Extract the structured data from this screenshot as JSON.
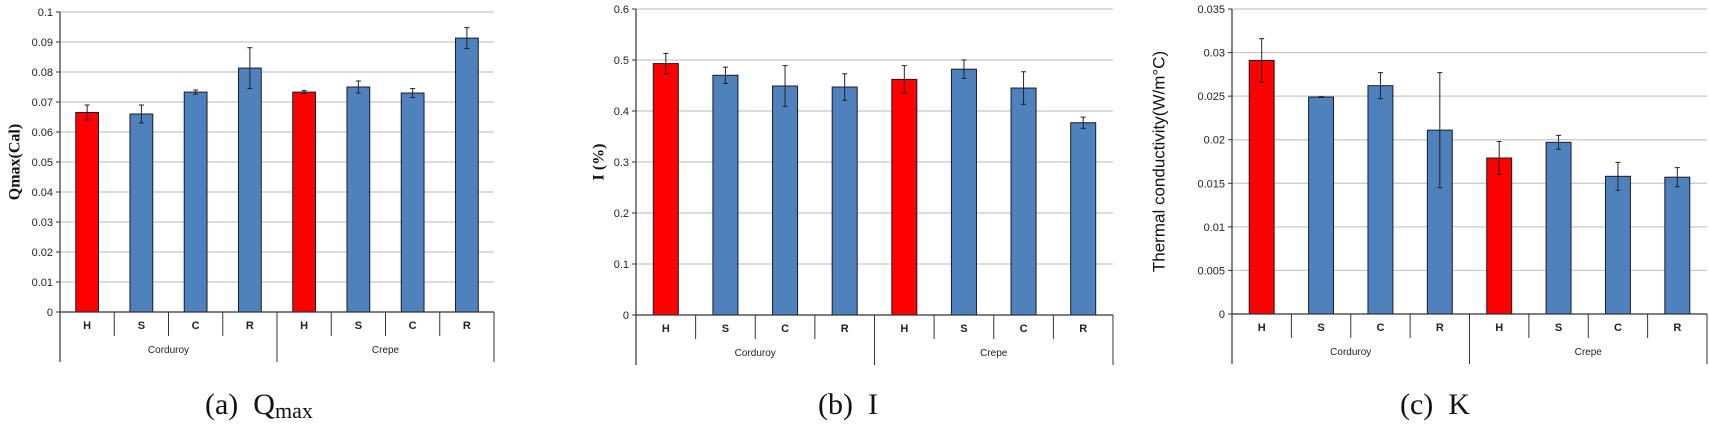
{
  "colors": {
    "highlight": "#ff0000",
    "bar": "#4f81bd",
    "grid": "#c8c8c8",
    "axis": "#333333"
  },
  "captions": [
    {
      "prefix": "(a)",
      "main": "Q",
      "sub": "max"
    },
    {
      "prefix": "(b)",
      "main": "I",
      "sub": ""
    },
    {
      "prefix": "(c)",
      "main": "K",
      "sub": ""
    }
  ],
  "chart_data": [
    {
      "type": "bar",
      "title": "(a) Qmax",
      "ylabel": "Qmax(Cal)",
      "xlabel": "",
      "ylim": [
        0,
        0.1
      ],
      "yticks": [
        0,
        0.01,
        0.02,
        0.03,
        0.04,
        0.05,
        0.06,
        0.07,
        0.08,
        0.09,
        0.1
      ],
      "ytick_labels": [
        "0",
        "0.01",
        "0.02",
        "0.03",
        "0.04",
        "0.05",
        "0.06",
        "0.07",
        "0.08",
        "0.09",
        "0.1"
      ],
      "groups": [
        "Corduroy",
        "Crepe"
      ],
      "categories": [
        "H",
        "S",
        "C",
        "R",
        "H",
        "S",
        "C",
        "R"
      ],
      "values": [
        0.0665,
        0.066,
        0.0733,
        0.0813,
        0.0733,
        0.075,
        0.073,
        0.0913
      ],
      "errors": [
        0.0025,
        0.003,
        0.0007,
        0.0068,
        0.0005,
        0.002,
        0.0015,
        0.0035
      ],
      "highlight": [
        0,
        4
      ],
      "grid": true,
      "legend": "none"
    },
    {
      "type": "bar",
      "title": "(b) I",
      "ylabel": "I (%)",
      "xlabel": "",
      "ylim": [
        0,
        0.6
      ],
      "yticks": [
        0,
        0.1,
        0.2,
        0.3,
        0.4,
        0.5,
        0.6
      ],
      "ytick_labels": [
        "0",
        "0.1",
        "0.2",
        "0.3",
        "0.4",
        "0.5",
        "0.6"
      ],
      "groups": [
        "Corduroy",
        "Crepe"
      ],
      "categories": [
        "H",
        "S",
        "C",
        "R",
        "H",
        "S",
        "C",
        "R"
      ],
      "values": [
        0.493,
        0.47,
        0.449,
        0.447,
        0.462,
        0.482,
        0.445,
        0.377
      ],
      "errors": [
        0.02,
        0.016,
        0.04,
        0.026,
        0.027,
        0.018,
        0.032,
        0.011
      ],
      "highlight": [
        0,
        4
      ],
      "grid": true,
      "legend": "none"
    },
    {
      "type": "bar",
      "title": "(c) K",
      "ylabel": "Thermal conductivity(W/m°C)",
      "xlabel": "",
      "ylim": [
        0,
        0.035
      ],
      "yticks": [
        0,
        0.005,
        0.01,
        0.015,
        0.02,
        0.025,
        0.03,
        0.035
      ],
      "ytick_labels": [
        "0",
        "0.005",
        "0.01",
        "0.015",
        "0.02",
        "0.025",
        "0.03",
        "0.035"
      ],
      "groups": [
        "Corduroy",
        "Crepe"
      ],
      "categories": [
        "H",
        "S",
        "C",
        "R",
        "H",
        "S",
        "C",
        "R"
      ],
      "values": [
        0.0291,
        0.0249,
        0.0262,
        0.0211,
        0.0179,
        0.0197,
        0.0158,
        0.0157
      ],
      "errors": [
        0.0025,
        5e-05,
        0.0015,
        0.0066,
        0.0019,
        0.0008,
        0.0016,
        0.0011
      ],
      "highlight": [
        0,
        4
      ],
      "grid": true,
      "legend": "none"
    }
  ]
}
